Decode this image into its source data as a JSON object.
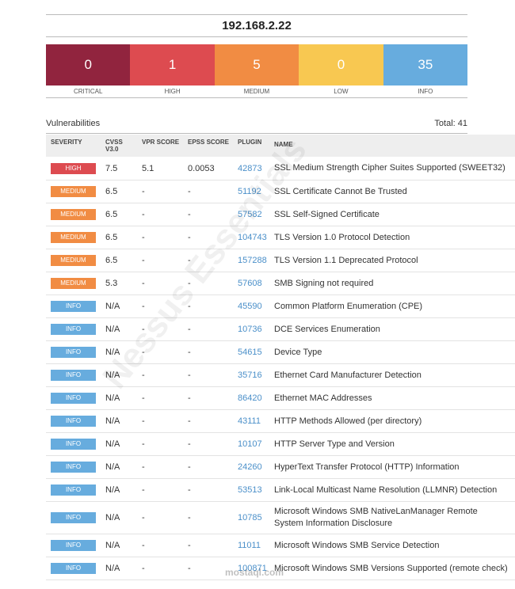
{
  "header": {
    "title": "192.168.2.22"
  },
  "summary": [
    {
      "count": 0,
      "label": "CRITICAL",
      "color": "#91243e"
    },
    {
      "count": 1,
      "label": "HIGH",
      "color": "#dd4b50"
    },
    {
      "count": 5,
      "label": "MEDIUM",
      "color": "#f18c43"
    },
    {
      "count": 0,
      "label": "LOW",
      "color": "#f8c851"
    },
    {
      "count": 35,
      "label": "INFO",
      "color": "#67acde"
    }
  ],
  "section": {
    "title": "Vulnerabilities",
    "total": "Total: 41"
  },
  "watermark": {
    "product": "Nessus Essentials",
    "site": "mostaql.com"
  },
  "table": {
    "columns": [
      "SEVERITY",
      "CVSS V3.0",
      "VPR SCORE",
      "EPSS SCORE",
      "PLUGIN",
      "NAME"
    ],
    "rows": [
      [
        "HIGH",
        "7.5",
        "5.1",
        "0.0053",
        "42873",
        "SSL Medium Strength Cipher Suites Supported (SWEET32)"
      ],
      [
        "MEDIUM",
        "6.5",
        "-",
        "-",
        "51192",
        "SSL Certificate Cannot Be Trusted"
      ],
      [
        "MEDIUM",
        "6.5",
        "-",
        "-",
        "57582",
        "SSL Self-Signed Certificate"
      ],
      [
        "MEDIUM",
        "6.5",
        "-",
        "-",
        "104743",
        "TLS Version 1.0 Protocol Detection"
      ],
      [
        "MEDIUM",
        "6.5",
        "-",
        "-",
        "157288",
        "TLS Version 1.1 Deprecated Protocol"
      ],
      [
        "MEDIUM",
        "5.3",
        "-",
        "-",
        "57608",
        "SMB Signing not required"
      ],
      [
        "INFO",
        "N/A",
        "-",
        "-",
        "45590",
        "Common Platform Enumeration (CPE)"
      ],
      [
        "INFO",
        "N/A",
        "-",
        "-",
        "10736",
        "DCE Services Enumeration"
      ],
      [
        "INFO",
        "N/A",
        "-",
        "-",
        "54615",
        "Device Type"
      ],
      [
        "INFO",
        "N/A",
        "-",
        "-",
        "35716",
        "Ethernet Card Manufacturer Detection"
      ],
      [
        "INFO",
        "N/A",
        "-",
        "-",
        "86420",
        "Ethernet MAC Addresses"
      ],
      [
        "INFO",
        "N/A",
        "-",
        "-",
        "43111",
        "HTTP Methods Allowed (per directory)"
      ],
      [
        "INFO",
        "N/A",
        "-",
        "-",
        "10107",
        "HTTP Server Type and Version"
      ],
      [
        "INFO",
        "N/A",
        "-",
        "-",
        "24260",
        "HyperText Transfer Protocol (HTTP) Information"
      ],
      [
        "INFO",
        "N/A",
        "-",
        "-",
        "53513",
        "Link-Local Multicast Name Resolution (LLMNR) Detection"
      ],
      [
        "INFO",
        "N/A",
        "-",
        "-",
        "10785",
        "Microsoft Windows SMB NativeLanManager Remote System Information Disclosure"
      ],
      [
        "INFO",
        "N/A",
        "-",
        "-",
        "11011",
        "Microsoft Windows SMB Service Detection"
      ],
      [
        "INFO",
        "N/A",
        "-",
        "-",
        "100871",
        "Microsoft Windows SMB Versions Supported (remote check)"
      ]
    ]
  }
}
